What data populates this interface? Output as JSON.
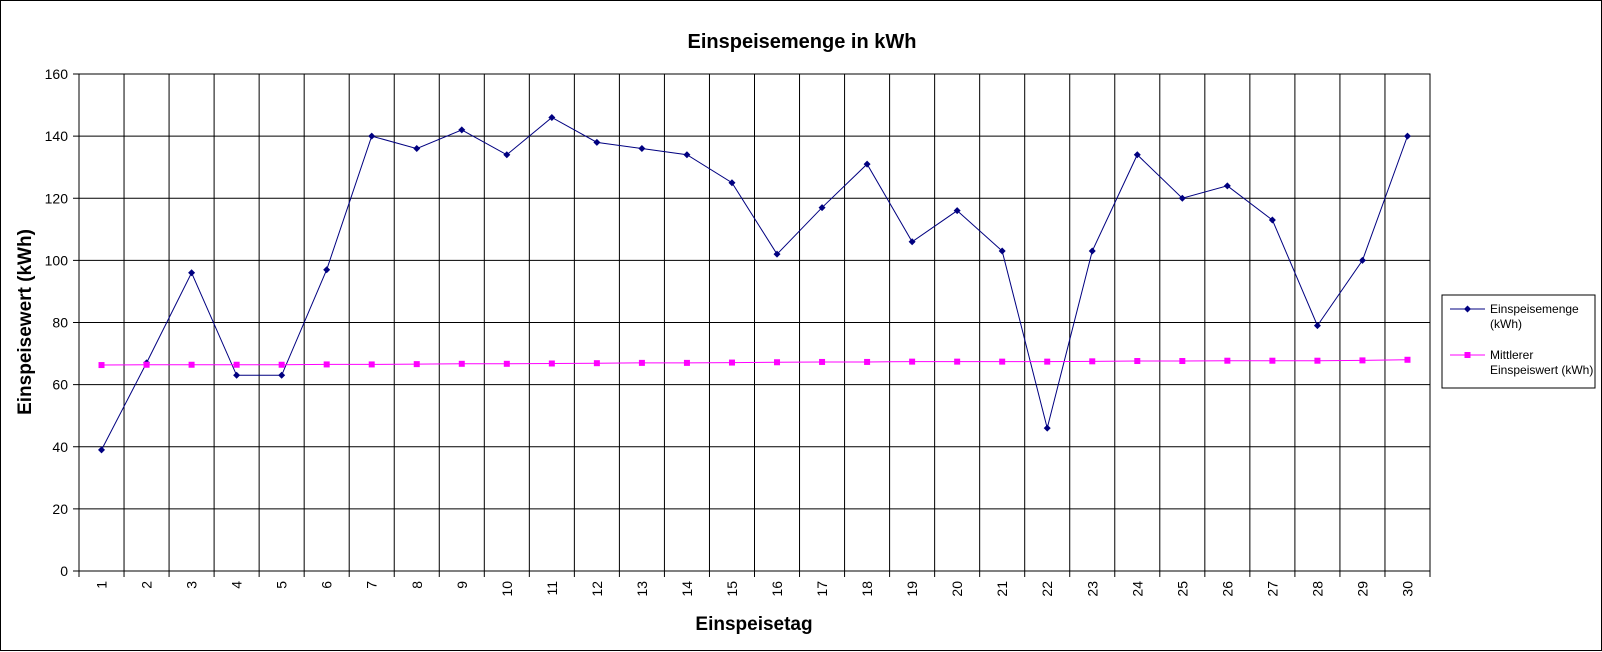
{
  "chart_data": {
    "type": "line",
    "title": "Einspeisemenge in kWh",
    "xlabel": "Einspeisetag",
    "ylabel": "Einspeisewert  (kWh)",
    "x": [
      "1",
      "2",
      "3",
      "4",
      "5",
      "6",
      "7",
      "8",
      "9",
      "10",
      "11",
      "12",
      "13",
      "14",
      "15",
      "16",
      "17",
      "18",
      "19",
      "20",
      "21",
      "22",
      "23",
      "24",
      "25",
      "26",
      "27",
      "28",
      "29",
      "30"
    ],
    "ylim": [
      0,
      160
    ],
    "yticks": [
      "0",
      "20",
      "40",
      "60",
      "80",
      "100",
      "120",
      "140",
      "160"
    ],
    "grid": true,
    "legend_position": "right",
    "series": [
      {
        "name": "Einspeisemenge (kWh)",
        "legend_lines": [
          "Einspeisemenge",
          "(kWh)"
        ],
        "color": "#000080",
        "marker": "diamond",
        "values": [
          39,
          67,
          96,
          63,
          63,
          97,
          140,
          136,
          142,
          134,
          146,
          138,
          136,
          134,
          125,
          102,
          117,
          131,
          106,
          116,
          103,
          46,
          103,
          134,
          120,
          124,
          113,
          79,
          100,
          140
        ]
      },
      {
        "name": "Mittlerer Einspeiswert (kWh)",
        "legend_lines": [
          "Mittlerer",
          "Einspeiswert (kWh)"
        ],
        "color": "#ff00ff",
        "marker": "square",
        "values": [
          66.3,
          66.4,
          66.4,
          66.4,
          66.4,
          66.5,
          66.5,
          66.6,
          66.7,
          66.7,
          66.8,
          66.9,
          67.0,
          67.0,
          67.1,
          67.2,
          67.3,
          67.3,
          67.4,
          67.4,
          67.4,
          67.4,
          67.5,
          67.6,
          67.6,
          67.7,
          67.7,
          67.7,
          67.8,
          68.0
        ]
      }
    ]
  }
}
